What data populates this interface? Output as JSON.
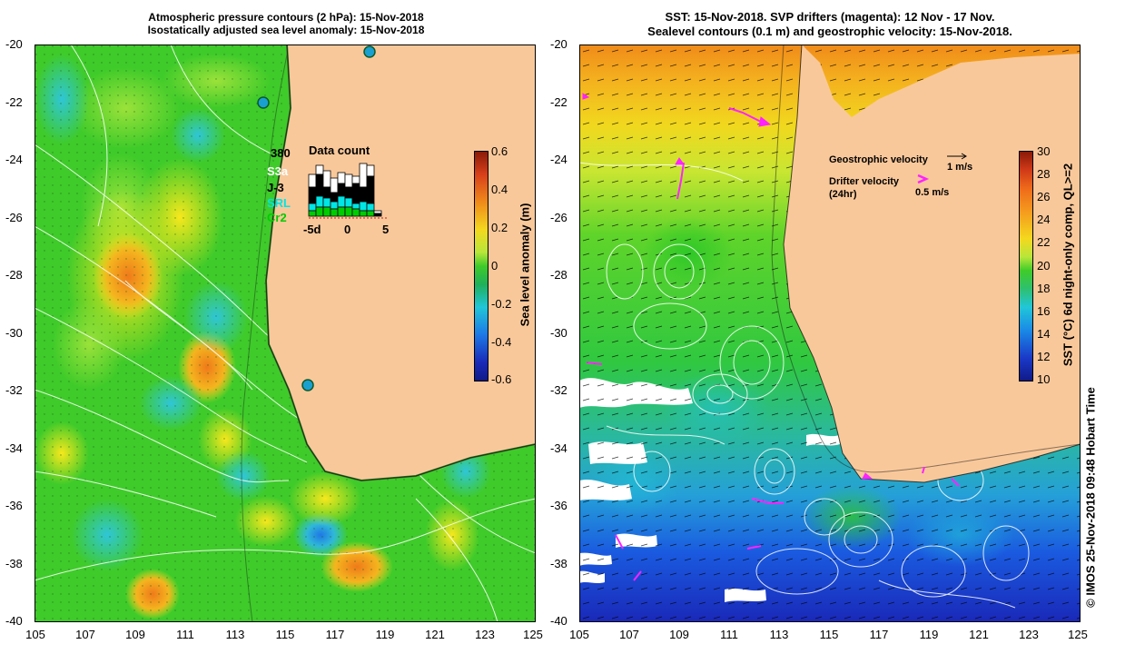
{
  "left_panel": {
    "title_line1": "Atmospheric pressure contours (2 hPa): 15-Nov-2018",
    "title_line2": "Isostatically adjusted sea level anomaly: 15-Nov-2018",
    "colorbar": {
      "label": "Sea level anomaly (m)",
      "ticks": [
        "0.6",
        "0.4",
        "0.2",
        "0",
        "-0.2",
        "-0.4",
        "-0.6"
      ],
      "range": [
        -0.6,
        0.6
      ]
    },
    "data_count": {
      "title": "Data count",
      "total": "380",
      "missions": [
        {
          "name": "S3a",
          "color": "#ffffff"
        },
        {
          "name": "J-3",
          "color": "#000000"
        },
        {
          "name": "SRL",
          "color": "#00e5e5"
        },
        {
          "name": "Cr2",
          "color": "#00cc00"
        }
      ],
      "axis_ticks": [
        "-5d",
        "0",
        "5"
      ]
    }
  },
  "right_panel": {
    "title_line1": "SST: 15-Nov-2018. SVP drifters (magenta): 12 Nov - 17 Nov.",
    "title_line2": "Sealevel contours (0.1 m) and geostrophic velocity: 15-Nov-2018.",
    "legend": {
      "geo_label": "Geostrophic velocity",
      "geo_scale": "1 m/s",
      "drifter_label_1": "Drifter velocity",
      "drifter_label_2": "(24hr)",
      "drifter_scale": "0.5 m/s"
    },
    "colorbar": {
      "label": "SST (°C) 6d night-only comp, QL>=2",
      "ticks": [
        "30",
        "28",
        "26",
        "24",
        "22",
        "20",
        "18",
        "16",
        "14",
        "12",
        "10"
      ],
      "range": [
        10,
        30
      ]
    }
  },
  "axes": {
    "lat_ticks": [
      "-20",
      "-22",
      "-24",
      "-26",
      "-28",
      "-30",
      "-32",
      "-34",
      "-36",
      "-38",
      "-40"
    ],
    "lon_ticks": [
      "105",
      "107",
      "109",
      "111",
      "113",
      "115",
      "117",
      "119",
      "121",
      "123",
      "125"
    ]
  },
  "credit": "© IMOS 25-Nov-2018 09:48 Hobart Time",
  "colors": {
    "land": "#f9c89a",
    "ocean_green": "#3fcb2a",
    "drifter": "#ff22ff",
    "background": "#ffffff"
  }
}
